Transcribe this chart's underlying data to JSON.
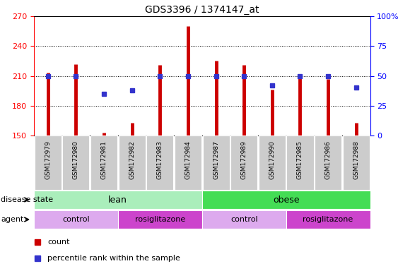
{
  "title": "GDS3396 / 1374147_at",
  "samples": [
    "GSM172979",
    "GSM172980",
    "GSM172981",
    "GSM172982",
    "GSM172983",
    "GSM172984",
    "GSM172987",
    "GSM172989",
    "GSM172990",
    "GSM172985",
    "GSM172986",
    "GSM172988"
  ],
  "counts": [
    213,
    222,
    153,
    163,
    221,
    260,
    225,
    221,
    196,
    210,
    207,
    163
  ],
  "percentiles": [
    50,
    50,
    35,
    38,
    50,
    50,
    50,
    50,
    42,
    50,
    50,
    40
  ],
  "ylim_left": [
    150,
    270
  ],
  "ylim_right": [
    0,
    100
  ],
  "yticks_left": [
    150,
    180,
    210,
    240,
    270
  ],
  "yticks_right": [
    0,
    25,
    50,
    75,
    100
  ],
  "ytick_labels_right": [
    "0",
    "25",
    "50",
    "75",
    "100%"
  ],
  "bar_color": "#cc0000",
  "dot_color": "#3333cc",
  "color_lean": "#aaeebb",
  "color_obese": "#44dd55",
  "color_control": "#ddaaee",
  "color_rosiglitazone": "#cc44cc",
  "color_label_bg": "#cccccc",
  "agent_groups": [
    {
      "start": 0,
      "end": 2,
      "label": "control",
      "color_key": "color_control"
    },
    {
      "start": 3,
      "end": 5,
      "label": "rosiglitazone",
      "color_key": "color_rosiglitazone"
    },
    {
      "start": 6,
      "end": 8,
      "label": "control",
      "color_key": "color_control"
    },
    {
      "start": 9,
      "end": 11,
      "label": "rosiglitazone",
      "color_key": "color_rosiglitazone"
    }
  ]
}
